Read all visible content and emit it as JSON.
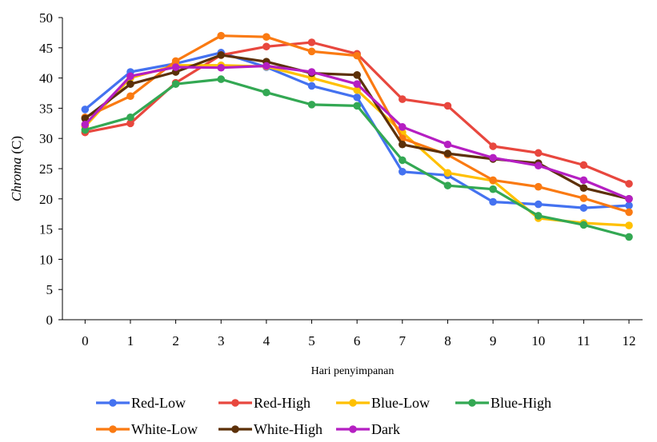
{
  "chart_data": {
    "type": "line",
    "xlabel": "Hari penyimpanan",
    "ylabel_italic": "Chroma",
    "ylabel_rest": " (C)",
    "x": [
      0,
      1,
      2,
      3,
      4,
      5,
      6,
      7,
      8,
      9,
      10,
      11,
      12
    ],
    "ylim": [
      0,
      50
    ],
    "yticks": [
      0,
      5,
      10,
      15,
      20,
      25,
      30,
      35,
      40,
      45,
      50
    ],
    "grid": false,
    "legend_position": "bottom",
    "series": [
      {
        "name": "Red-Low",
        "color": "#4472f0",
        "values": [
          34.8,
          41.0,
          42.4,
          44.2,
          41.8,
          38.7,
          36.8,
          24.5,
          23.9,
          19.5,
          19.1,
          18.5,
          18.9
        ]
      },
      {
        "name": "Red-High",
        "color": "#e8473e",
        "values": [
          31.0,
          32.5,
          39.2,
          43.8,
          45.2,
          45.9,
          44.0,
          36.5,
          35.4,
          28.7,
          27.6,
          25.6,
          22.5
        ]
      },
      {
        "name": "Blue-Low",
        "color": "#ffc000",
        "values": [
          32.0,
          40.0,
          42.1,
          42.1,
          41.9,
          40.0,
          38.0,
          31.0,
          24.3,
          23.0,
          16.8,
          16.0,
          15.6
        ]
      },
      {
        "name": "Blue-High",
        "color": "#33a853",
        "values": [
          31.4,
          33.5,
          39.0,
          39.8,
          37.6,
          35.6,
          35.4,
          26.4,
          22.2,
          21.6,
          17.2,
          15.7,
          13.7
        ]
      },
      {
        "name": "White-Low",
        "color": "#fa7a12",
        "values": [
          33.5,
          37.0,
          42.8,
          47.0,
          46.8,
          44.4,
          43.7,
          30.0,
          27.3,
          23.1,
          22.0,
          20.1,
          17.8
        ]
      },
      {
        "name": "White-High",
        "color": "#5c3008",
        "values": [
          33.3,
          39.0,
          41.0,
          43.8,
          42.7,
          40.8,
          40.5,
          29.0,
          27.5,
          26.6,
          25.9,
          21.8,
          20.0
        ]
      },
      {
        "name": "Dark",
        "color": "#b51fc2",
        "values": [
          32.3,
          40.3,
          41.8,
          41.7,
          42.0,
          41.0,
          39.0,
          31.9,
          29.0,
          26.8,
          25.5,
          23.1,
          20.0
        ]
      }
    ]
  }
}
